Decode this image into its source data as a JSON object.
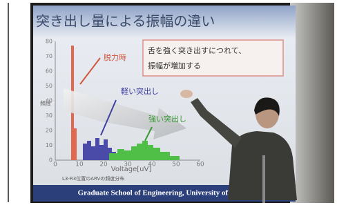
{
  "slide": {
    "title": "突き出し量による振幅の違い",
    "callout": [
      "舌を強く突き出すにつれて、",
      "振幅が増加する"
    ],
    "labels": [
      "脱力時",
      "軽い突出し",
      "強い突出し"
    ],
    "y_axis_label": "頻度",
    "y_ticks": [
      "0",
      "10",
      "20",
      "30",
      "40",
      "50",
      "60",
      "70",
      "80"
    ],
    "x_ticks": [
      "0",
      "10",
      "20",
      "30",
      "40",
      "50",
      "60"
    ],
    "x_axis_label": "Voltage[uV]",
    "caption": "L3-R3位置のARVの頻度分布",
    "footer": "Graduate School of Engineering, University of Hyogo"
  }
}
